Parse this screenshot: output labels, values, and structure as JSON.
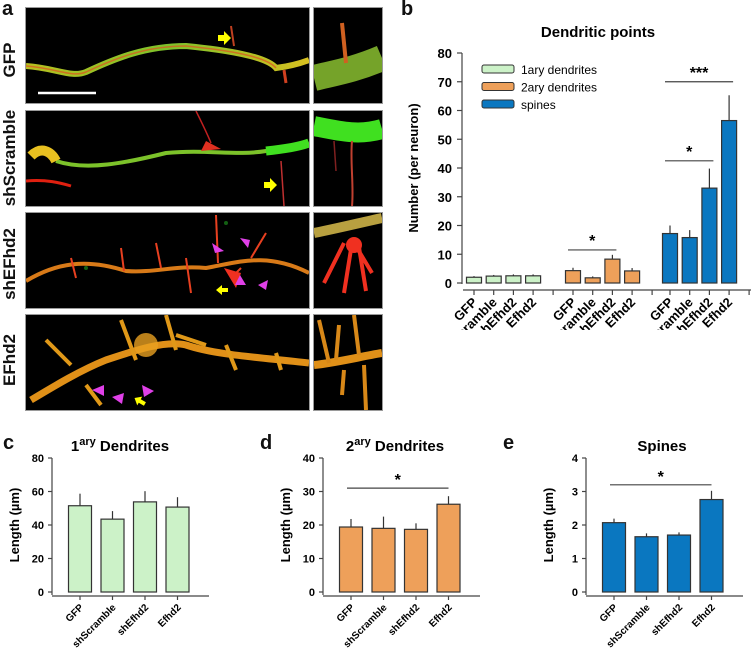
{
  "panels": {
    "a": {
      "letter": "a",
      "rows": [
        {
          "label": "GFP"
        },
        {
          "label": "shScramble"
        },
        {
          "label": "shEFhd2"
        },
        {
          "label": "EFhd2"
        }
      ]
    },
    "b": {
      "letter": "b"
    },
    "c": {
      "letter": "c"
    },
    "d": {
      "letter": "d"
    },
    "e": {
      "letter": "e"
    }
  },
  "colors": {
    "primary": "#ccf2c8",
    "secondary": "#eea05a",
    "spines": "#0a77c0",
    "arrow": "#ffff00",
    "arrowhead": "#e040e8"
  },
  "chart_data": [
    {
      "id": "b",
      "type": "bar",
      "title": "Dendritic points",
      "ylabel": "Number (per neuron)",
      "xlabel": "",
      "ylim": [
        0,
        80
      ],
      "yticks": [
        0,
        10,
        20,
        30,
        40,
        50,
        60,
        70,
        80
      ],
      "legend": {
        "placement": "top-left",
        "entries": [
          "1ary dendrites",
          "2ary dendrites",
          "spines"
        ]
      },
      "categories": [
        "GFP",
        "shScramble",
        "shEfhd2",
        "Efhd2"
      ],
      "series": [
        {
          "name": "1ary dendrites",
          "values": [
            2.0,
            2.4,
            2.5,
            2.5
          ],
          "errors": [
            0.4,
            0.4,
            0.5,
            0.5
          ]
        },
        {
          "name": "2ary dendrites",
          "values": [
            4.3,
            1.8,
            8.3,
            4.2
          ],
          "errors": [
            1.0,
            0.5,
            1.5,
            1.0
          ]
        },
        {
          "name": "spines",
          "values": [
            17.2,
            15.8,
            33.0,
            56.5
          ],
          "errors": [
            2.8,
            2.6,
            6.8,
            8.8
          ]
        }
      ],
      "annotations": [
        {
          "series": "2ary dendrites",
          "from": "GFP",
          "to": "shEfhd2",
          "y": 11.5,
          "label": "*"
        },
        {
          "series": "spines",
          "from": "GFP",
          "to": "shEfhd2",
          "y": 42.5,
          "label": "*"
        },
        {
          "series": "spines",
          "from": "GFP",
          "to": "Efhd2",
          "y": 70,
          "label": "***"
        }
      ]
    },
    {
      "id": "c",
      "type": "bar",
      "title": "1ary Dendrites",
      "title_base": "1",
      "title_sup": "ary",
      "title_rest": " Dendrites",
      "ylabel": "Length (µm)",
      "xlabel": "",
      "ylim": [
        0,
        80
      ],
      "yticks": [
        0,
        20,
        40,
        60,
        80
      ],
      "categories": [
        "GFP",
        "shScramble",
        "shEfhd2",
        "Efhd2"
      ],
      "values": [
        51.5,
        43.5,
        53.8,
        50.7
      ],
      "errors": [
        7.2,
        4.8,
        6.4,
        5.9
      ],
      "annotations": []
    },
    {
      "id": "d",
      "type": "bar",
      "title": "2ary Dendrites",
      "title_base": "2",
      "title_sup": "ary",
      "title_rest": " Dendrites",
      "ylabel": "Length (µm)",
      "xlabel": "",
      "ylim": [
        0,
        40
      ],
      "yticks": [
        0,
        10,
        20,
        30,
        40
      ],
      "categories": [
        "GFP",
        "shScramble",
        "shEfhd2",
        "Efhd2"
      ],
      "values": [
        19.4,
        19.0,
        18.7,
        26.2
      ],
      "errors": [
        2.4,
        3.5,
        1.8,
        2.4
      ],
      "annotations": [
        {
          "from": "GFP",
          "to": "Efhd2",
          "y": 31,
          "label": "*"
        }
      ]
    },
    {
      "id": "e",
      "type": "bar",
      "title": "Spines",
      "title_base": "Spines",
      "title_sup": "",
      "title_rest": "",
      "ylabel": "Length (µm)",
      "xlabel": "",
      "ylim": [
        0,
        4
      ],
      "yticks": [
        0,
        1,
        2,
        3,
        4
      ],
      "categories": [
        "GFP",
        "shScramble",
        "shEfhd2",
        "Efhd2"
      ],
      "values": [
        2.07,
        1.65,
        1.7,
        2.76
      ],
      "errors": [
        0.12,
        0.1,
        0.08,
        0.26
      ],
      "annotations": [
        {
          "from": "GFP",
          "to": "Efhd2",
          "y": 3.2,
          "label": "*"
        }
      ]
    }
  ]
}
